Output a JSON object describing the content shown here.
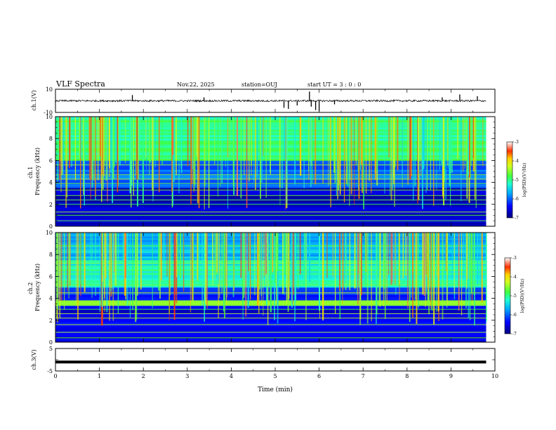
{
  "header": {
    "title": "VLF Spectra",
    "date": "Nov.22, 2025",
    "station": "station=OUJ",
    "start": "start  UT =  3 : 0  : 0"
  },
  "chart_data": [
    {
      "type": "line",
      "id": "ch1-waveform",
      "ylabel": "ch.1(V)",
      "ylim": [
        -10,
        10
      ],
      "yticks": [
        10,
        -10
      ],
      "xlim": [
        0,
        10
      ],
      "baseline": 0,
      "series": [
        {
          "name": "ch.1 waveform",
          "level": 0
        }
      ],
      "spikes": [
        {
          "x": 1.75,
          "y": 5.0
        },
        {
          "x": 3.38,
          "y": 3.0
        },
        {
          "x": 5.2,
          "y": -6.0
        },
        {
          "x": 5.3,
          "y": -7.0
        },
        {
          "x": 5.5,
          "y": -4.0
        },
        {
          "x": 5.78,
          "y": 8.0
        },
        {
          "x": 5.82,
          "y": -5.0
        },
        {
          "x": 5.92,
          "y": -8.0
        },
        {
          "x": 6.0,
          "y": -9.0
        },
        {
          "x": 6.35,
          "y": -3.0
        },
        {
          "x": 8.8,
          "y": 3.0
        },
        {
          "x": 9.2,
          "y": 5.5
        },
        {
          "x": 9.6,
          "y": 4.0
        }
      ]
    },
    {
      "type": "heatmap",
      "id": "ch1-spectrogram",
      "ylabel": "ch.1\nFrequency  (kHz)",
      "ylim": [
        0,
        10
      ],
      "yticks": [
        0,
        2,
        4,
        6,
        8,
        10
      ],
      "xlim": [
        0,
        9.8
      ],
      "colorbar": {
        "label": "log(PSD)(V²/Hz)",
        "range": [
          -7,
          -3
        ],
        "ticks": [
          -3,
          -4,
          -5,
          -6,
          -7
        ]
      },
      "layers": [
        {
          "fmin": 0,
          "fmax": 3.5,
          "level": -6.7
        },
        {
          "fmin": 3.5,
          "fmax": 6.0,
          "level": -6.0
        },
        {
          "fmin": 6.0,
          "fmax": 10,
          "level": -5.0
        }
      ],
      "lines_khz": [
        0.5,
        1.0,
        1.3,
        2.0,
        2.4,
        2.8,
        3.3,
        3.9,
        4.3,
        4.7,
        5.6
      ]
    },
    {
      "type": "heatmap",
      "id": "ch2-spectrogram",
      "ylabel": "ch.2\nFrequency  (kHz)",
      "ylim": [
        0,
        10
      ],
      "yticks": [
        0,
        2,
        4,
        6,
        8,
        10
      ],
      "xlim": [
        0,
        9.8
      ],
      "colorbar": {
        "label": "log(PSD)(V²/Hz)",
        "range": [
          -7,
          -3
        ],
        "ticks": [
          -3,
          -4,
          -5,
          -6,
          -7
        ]
      },
      "layers": [
        {
          "fmin": 0,
          "fmax": 3.3,
          "level": -6.5
        },
        {
          "fmin": 3.3,
          "fmax": 3.8,
          "level": -4.6
        },
        {
          "fmin": 3.8,
          "fmax": 5.0,
          "level": -6.3
        },
        {
          "fmin": 5.0,
          "fmax": 7.5,
          "level": -5.2
        },
        {
          "fmin": 7.5,
          "fmax": 10,
          "level": -5.6
        }
      ],
      "lines_khz": [
        0.4,
        0.9,
        1.6,
        2.2,
        2.6,
        3.0,
        3.5,
        4.5,
        5.2,
        7.2,
        8.8
      ]
    },
    {
      "type": "line",
      "id": "ch3-waveform",
      "ylabel": "ch.3(V)",
      "ylim": [
        -5,
        5
      ],
      "yticks": [
        5,
        0,
        -5
      ],
      "xlim": [
        0,
        10
      ],
      "series": [
        {
          "name": "ch.3 waveform",
          "level": -1.0
        }
      ]
    }
  ],
  "x_axis": {
    "label": "Time  (min)",
    "ticks": [
      "0",
      "1",
      "2",
      "3",
      "4",
      "5",
      "6",
      "7",
      "8",
      "9",
      "10"
    ]
  }
}
